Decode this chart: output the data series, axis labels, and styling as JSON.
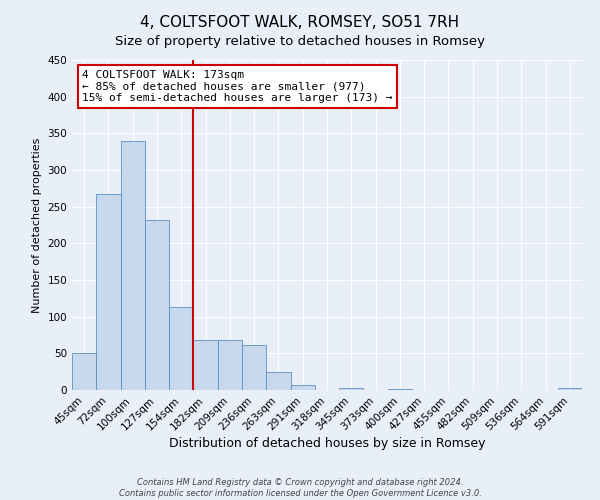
{
  "title": "4, COLTSFOOT WALK, ROMSEY, SO51 7RH",
  "subtitle": "Size of property relative to detached houses in Romsey",
  "xlabel": "Distribution of detached houses by size in Romsey",
  "ylabel": "Number of detached properties",
  "footer_line1": "Contains HM Land Registry data © Crown copyright and database right 2024.",
  "footer_line2": "Contains public sector information licensed under the Open Government Licence v3.0.",
  "bin_labels": [
    "45sqm",
    "72sqm",
    "100sqm",
    "127sqm",
    "154sqm",
    "182sqm",
    "209sqm",
    "236sqm",
    "263sqm",
    "291sqm",
    "318sqm",
    "345sqm",
    "373sqm",
    "400sqm",
    "427sqm",
    "455sqm",
    "482sqm",
    "509sqm",
    "536sqm",
    "564sqm",
    "591sqm"
  ],
  "bar_values": [
    50,
    267,
    340,
    232,
    113,
    68,
    68,
    62,
    25,
    7,
    0,
    3,
    0,
    2,
    0,
    0,
    0,
    0,
    0,
    0,
    3
  ],
  "bar_color": "#c9d9ed",
  "bar_edge_color": "#5a8fc4",
  "ylim": [
    0,
    450
  ],
  "yticks": [
    0,
    50,
    100,
    150,
    200,
    250,
    300,
    350,
    400,
    450
  ],
  "vline_color": "#cc0000",
  "vline_index": 5,
  "annotation_line1": "4 COLTSFOOT WALK: 173sqm",
  "annotation_line2": "← 85% of detached houses are smaller (977)",
  "annotation_line3": "15% of semi-detached houses are larger (173) →",
  "annotation_box_facecolor": "#ffffff",
  "annotation_box_edgecolor": "#cc0000",
  "background_color": "#e8eff8",
  "grid_color": "#ffffff",
  "title_fontsize": 11,
  "subtitle_fontsize": 9.5,
  "xlabel_fontsize": 9,
  "ylabel_fontsize": 8,
  "tick_fontsize": 7.5,
  "annotation_fontsize": 8,
  "footer_fontsize": 6
}
